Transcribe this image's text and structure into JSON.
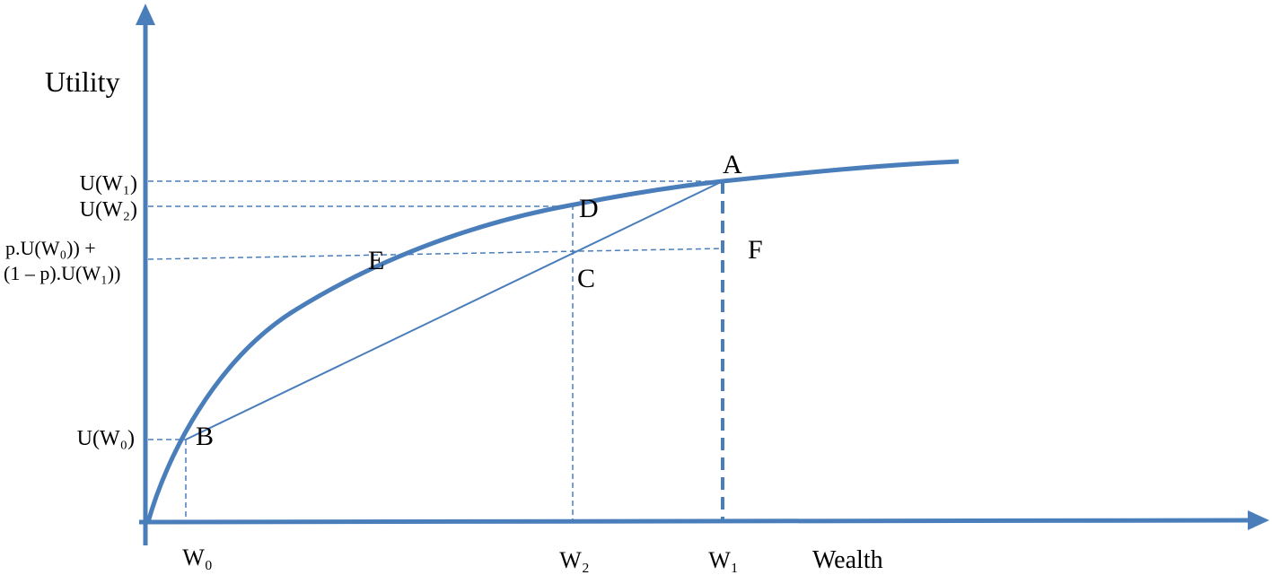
{
  "axes": {
    "y_label": "Utility",
    "x_label": "Wealth"
  },
  "y_labels": [
    "U(W₁)",
    "U(W₂)",
    "p.U(W₀)) +",
    "(1 – p).U(W₁))",
    "U(W₀)"
  ],
  "x_labels": [
    "W₀",
    "W₂",
    "W₁"
  ],
  "points": [
    "A",
    "B",
    "C",
    "D",
    "E",
    "F"
  ]
}
